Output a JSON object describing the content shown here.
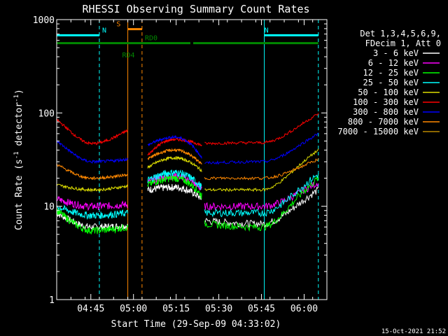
{
  "chart_data": {
    "type": "line",
    "title": "RHESSI Observing Summary Count Rates",
    "xlabel": "Start Time (29-Sep-09 04:33:02)",
    "ylabel_main": "Count Rate (s",
    "ylabel_sup1": "-1",
    "ylabel_mid": " detector",
    "ylabel_sup2": "-1",
    "ylabel_end": ")",
    "yscale": "log",
    "ylim": [
      1,
      1000
    ],
    "y_ticks": [
      {
        "value": 1,
        "label": "1"
      },
      {
        "value": 10,
        "label": "10"
      },
      {
        "value": 100,
        "label": "100"
      },
      {
        "value": 1000,
        "label": "1000"
      }
    ],
    "xlim_min": [
      0,
      95
    ],
    "x_ticks": [
      {
        "min": 12,
        "label": "04:45"
      },
      {
        "min": 27,
        "label": "05:00"
      },
      {
        "min": 42,
        "label": "05:15"
      },
      {
        "min": 57,
        "label": "05:30"
      },
      {
        "min": 72,
        "label": "05:45"
      },
      {
        "min": 87,
        "label": "06:00"
      }
    ],
    "legend": {
      "header1": "Det 1,3,4,5,6,9,",
      "header2": "FDecim 1, Att 0",
      "position": "right"
    },
    "series": [
      {
        "name": "3 - 6 keV",
        "color": "#ffffff",
        "values_by_segment": [
          [
            8.5,
            6.0,
            6.2
          ],
          [
            15.0,
            16.0,
            12.0
          ],
          [
            7.0,
            6.5,
            15.0
          ]
        ]
      },
      {
        "name": "6 - 12 keV",
        "color": "#ff00ff",
        "values_by_segment": [
          [
            12.0,
            10.0,
            10.5
          ],
          [
            18.0,
            21.0,
            15.0
          ],
          [
            10.0,
            10.0,
            18.0
          ]
        ]
      },
      {
        "name": "12 - 25 keV",
        "color": "#00ff00",
        "values_by_segment": [
          [
            9.0,
            5.5,
            6.0
          ],
          [
            17.0,
            20.0,
            13.0
          ],
          [
            6.5,
            6.0,
            20.0
          ]
        ]
      },
      {
        "name": "25 - 50 keV",
        "color": "#00ffff",
        "values_by_segment": [
          [
            10.0,
            8.0,
            8.5
          ],
          [
            19.0,
            23.0,
            16.0
          ],
          [
            8.5,
            8.5,
            22.0
          ]
        ]
      },
      {
        "name": "50 - 100 keV",
        "color": "#dddd00",
        "values_by_segment": [
          [
            17.0,
            15.0,
            16.5
          ],
          [
            26.0,
            33.0,
            24.0
          ],
          [
            15.0,
            15.0,
            40.0
          ]
        ]
      },
      {
        "name": "100 - 300 keV",
        "color": "#ff0000",
        "values_by_segment": [
          [
            85.0,
            47.0,
            65.0
          ],
          [
            35.0,
            52.0,
            45.0
          ],
          [
            47.0,
            48.0,
            98.0
          ]
        ]
      },
      {
        "name": "300 - 800 keV",
        "color": "#0000ff",
        "values_by_segment": [
          [
            50.0,
            30.0,
            32.0
          ],
          [
            45.0,
            55.0,
            33.0
          ],
          [
            29.0,
            30.0,
            60.0
          ]
        ]
      },
      {
        "name": "800 - 7000 keV",
        "color": "#ff8800",
        "values_by_segment": [
          [
            28.0,
            20.0,
            22.0
          ],
          [
            32.0,
            40.0,
            28.0
          ],
          [
            20.0,
            20.0,
            32.0
          ]
        ]
      },
      {
        "name": "7000 - 15000 keV",
        "color": "#bb8800",
        "values_by_segment": [],
        "note_visible": false
      }
    ],
    "segments_min": [
      [
        0,
        25
      ],
      [
        32,
        51
      ],
      [
        52,
        92
      ]
    ],
    "flags": [
      {
        "label": "N",
        "color": "#00ffff",
        "from_min": 0,
        "to_min": 15,
        "y": 680,
        "label_min": 16
      },
      {
        "label": "N",
        "color": "#00ffff",
        "from_min": 73,
        "to_min": 92,
        "y": 680
      },
      {
        "label": "S",
        "color": "#ff8800",
        "from_min": 25,
        "to_min": 30,
        "y": 790,
        "label_min": 21
      },
      {
        "label": "RD0",
        "color": "#008800",
        "from_min": 0,
        "to_min": 47,
        "y": 560,
        "label_min": 31
      },
      {
        "label": "",
        "color": "#008800",
        "from_min": 48,
        "to_min": 92,
        "y": 560
      },
      {
        "label": "RD4",
        "color": "#008800",
        "label_min": 23,
        "label_y": 420
      }
    ],
    "vlines": [
      {
        "min": 0,
        "color": "#00ffff",
        "style": "solid"
      },
      {
        "min": 15,
        "color": "#00ffff",
        "style": "dashed"
      },
      {
        "min": 25,
        "color": "#ff8800",
        "style": "solid"
      },
      {
        "min": 30,
        "color": "#ff8800",
        "style": "dashed"
      },
      {
        "min": 73,
        "color": "#00ffff",
        "style": "solid"
      },
      {
        "min": 92,
        "color": "#00ffff",
        "style": "dashed"
      }
    ],
    "grid": false
  },
  "footer": {
    "timestamp": "15-Oct-2021 21:52"
  }
}
